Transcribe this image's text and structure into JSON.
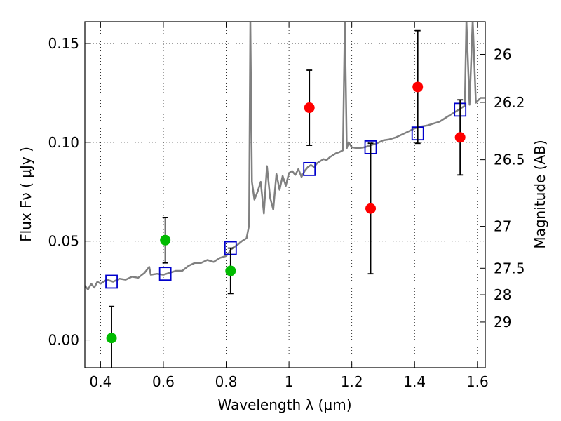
{
  "chart_data": {
    "type": "scatter",
    "title": "",
    "xlabel": "Wavelength  λ (μm)",
    "ylabel": "Flux  Fν  ( μJy )",
    "y2label": "Magnitude (AB)",
    "xlim": [
      0.35,
      1.625
    ],
    "ylim": [
      -0.014,
      0.161
    ],
    "grid": true,
    "x_ticks": [
      0.4,
      0.6,
      0.8,
      1.0,
      1.2,
      1.4,
      1.6
    ],
    "x_tick_labels": [
      "0.4",
      "0.6",
      "0.8",
      "1",
      "1.2",
      "1.4",
      "1.6"
    ],
    "y_ticks": [
      0.0,
      0.05,
      0.1,
      0.15
    ],
    "y_tick_labels": [
      "0.00",
      "0.05",
      "0.10",
      "0.15"
    ],
    "y2_ticks": [
      {
        "label": "26",
        "flux": 0.1445
      },
      {
        "label": "26.2",
        "flux": 0.1202
      },
      {
        "label": "26.5",
        "flux": 0.0912
      },
      {
        "label": "27",
        "flux": 0.0575
      },
      {
        "label": "27.5",
        "flux": 0.0363
      },
      {
        "label": "28",
        "flux": 0.0229
      },
      {
        "label": "29",
        "flux": 0.0091
      }
    ],
    "series": [
      {
        "marker": "circle",
        "color": "#00bb00",
        "points": [
          {
            "x": 0.435,
            "y": 0.001,
            "err": 0.016
          },
          {
            "x": 0.606,
            "y": 0.0505,
            "err": 0.0115
          },
          {
            "x": 0.814,
            "y": 0.035,
            "err": 0.0115
          }
        ]
      },
      {
        "marker": "circle",
        "color": "#ff0000",
        "points": [
          {
            "x": 1.065,
            "y": 0.1175,
            "err": 0.019
          },
          {
            "x": 1.26,
            "y": 0.0665,
            "err": 0.033
          },
          {
            "x": 1.41,
            "y": 0.128,
            "err": 0.0285
          },
          {
            "x": 1.545,
            "y": 0.1025,
            "err": 0.019
          }
        ]
      },
      {
        "marker": "open-square",
        "color": "#0000cc",
        "points": [
          {
            "x": 0.435,
            "y": 0.0295
          },
          {
            "x": 0.606,
            "y": 0.0335
          },
          {
            "x": 0.814,
            "y": 0.0465
          },
          {
            "x": 1.065,
            "y": 0.0865
          },
          {
            "x": 1.26,
            "y": 0.0975
          },
          {
            "x": 1.41,
            "y": 0.1045
          },
          {
            "x": 1.545,
            "y": 0.1165
          }
        ]
      },
      {
        "marker": "line",
        "color": "#808080",
        "points": [
          {
            "x": 0.35,
            "y": 0.0275
          },
          {
            "x": 0.36,
            "y": 0.0255
          },
          {
            "x": 0.37,
            "y": 0.0285
          },
          {
            "x": 0.38,
            "y": 0.0265
          },
          {
            "x": 0.39,
            "y": 0.0295
          },
          {
            "x": 0.4,
            "y": 0.0285
          },
          {
            "x": 0.42,
            "y": 0.0305
          },
          {
            "x": 0.44,
            "y": 0.0295
          },
          {
            "x": 0.46,
            "y": 0.031
          },
          {
            "x": 0.48,
            "y": 0.0305
          },
          {
            "x": 0.5,
            "y": 0.032
          },
          {
            "x": 0.52,
            "y": 0.0315
          },
          {
            "x": 0.54,
            "y": 0.034
          },
          {
            "x": 0.555,
            "y": 0.037
          },
          {
            "x": 0.56,
            "y": 0.033
          },
          {
            "x": 0.58,
            "y": 0.0335
          },
          {
            "x": 0.6,
            "y": 0.033
          },
          {
            "x": 0.62,
            "y": 0.034
          },
          {
            "x": 0.64,
            "y": 0.035
          },
          {
            "x": 0.66,
            "y": 0.035
          },
          {
            "x": 0.68,
            "y": 0.0375
          },
          {
            "x": 0.7,
            "y": 0.039
          },
          {
            "x": 0.72,
            "y": 0.039
          },
          {
            "x": 0.74,
            "y": 0.0405
          },
          {
            "x": 0.76,
            "y": 0.0395
          },
          {
            "x": 0.78,
            "y": 0.0415
          },
          {
            "x": 0.8,
            "y": 0.0425
          },
          {
            "x": 0.82,
            "y": 0.0465
          },
          {
            "x": 0.835,
            "y": 0.048
          },
          {
            "x": 0.85,
            "y": 0.05
          },
          {
            "x": 0.865,
            "y": 0.0515
          },
          {
            "x": 0.873,
            "y": 0.058
          },
          {
            "x": 0.877,
            "y": 0.162
          },
          {
            "x": 0.882,
            "y": 0.08
          },
          {
            "x": 0.89,
            "y": 0.071
          },
          {
            "x": 0.9,
            "y": 0.075
          },
          {
            "x": 0.91,
            "y": 0.08
          },
          {
            "x": 0.92,
            "y": 0.064
          },
          {
            "x": 0.93,
            "y": 0.088
          },
          {
            "x": 0.94,
            "y": 0.072
          },
          {
            "x": 0.95,
            "y": 0.066
          },
          {
            "x": 0.96,
            "y": 0.084
          },
          {
            "x": 0.97,
            "y": 0.076
          },
          {
            "x": 0.98,
            "y": 0.083
          },
          {
            "x": 0.99,
            "y": 0.078
          },
          {
            "x": 1.0,
            "y": 0.0845
          },
          {
            "x": 1.01,
            "y": 0.0855
          },
          {
            "x": 1.02,
            "y": 0.0835
          },
          {
            "x": 1.03,
            "y": 0.0865
          },
          {
            "x": 1.04,
            "y": 0.0825
          },
          {
            "x": 1.05,
            "y": 0.0855
          },
          {
            "x": 1.06,
            "y": 0.0875
          },
          {
            "x": 1.07,
            "y": 0.0885
          },
          {
            "x": 1.08,
            "y": 0.0875
          },
          {
            "x": 1.09,
            "y": 0.0895
          },
          {
            "x": 1.1,
            "y": 0.0905
          },
          {
            "x": 1.11,
            "y": 0.0915
          },
          {
            "x": 1.12,
            "y": 0.091
          },
          {
            "x": 1.13,
            "y": 0.0925
          },
          {
            "x": 1.14,
            "y": 0.0935
          },
          {
            "x": 1.15,
            "y": 0.0945
          },
          {
            "x": 1.16,
            "y": 0.095
          },
          {
            "x": 1.172,
            "y": 0.096
          },
          {
            "x": 1.178,
            "y": 0.162
          },
          {
            "x": 1.184,
            "y": 0.097
          },
          {
            "x": 1.19,
            "y": 0.1
          },
          {
            "x": 1.2,
            "y": 0.0975
          },
          {
            "x": 1.22,
            "y": 0.097
          },
          {
            "x": 1.24,
            "y": 0.0975
          },
          {
            "x": 1.26,
            "y": 0.0985
          },
          {
            "x": 1.28,
            "y": 0.0995
          },
          {
            "x": 1.3,
            "y": 0.101
          },
          {
            "x": 1.32,
            "y": 0.1015
          },
          {
            "x": 1.34,
            "y": 0.1025
          },
          {
            "x": 1.36,
            "y": 0.104
          },
          {
            "x": 1.38,
            "y": 0.1055
          },
          {
            "x": 1.4,
            "y": 0.107
          },
          {
            "x": 1.42,
            "y": 0.108
          },
          {
            "x": 1.44,
            "y": 0.1085
          },
          {
            "x": 1.46,
            "y": 0.1095
          },
          {
            "x": 1.48,
            "y": 0.1105
          },
          {
            "x": 1.5,
            "y": 0.1125
          },
          {
            "x": 1.52,
            "y": 0.1145
          },
          {
            "x": 1.54,
            "y": 0.1165
          },
          {
            "x": 1.56,
            "y": 0.1185
          },
          {
            "x": 1.565,
            "y": 0.162
          },
          {
            "x": 1.575,
            "y": 0.119
          },
          {
            "x": 1.585,
            "y": 0.162
          },
          {
            "x": 1.595,
            "y": 0.12
          },
          {
            "x": 1.61,
            "y": 0.1225
          },
          {
            "x": 1.625,
            "y": 0.1225
          }
        ]
      }
    ]
  }
}
